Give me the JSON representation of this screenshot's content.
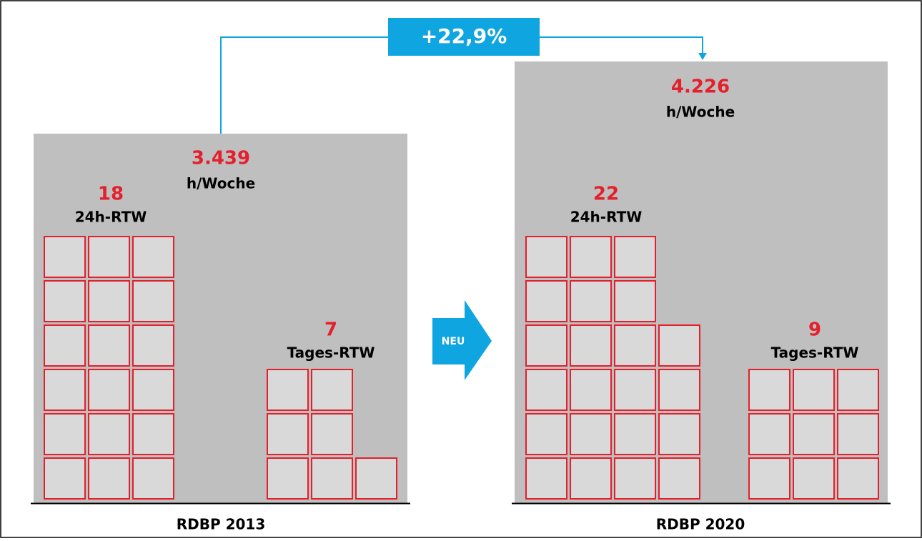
{
  "change": "+22,9%",
  "new_label": "NEU",
  "panels": [
    {
      "label": "RDBP 2013",
      "total": "3.439",
      "total_unit": "h/Woche",
      "groups": [
        {
          "count": 18,
          "label": "24h-RTW"
        },
        {
          "count": 7,
          "label": "Tages-RTW"
        }
      ]
    },
    {
      "label": "RDBP 2020",
      "total": "4.226",
      "total_unit": "h/Woche",
      "groups": [
        {
          "count": 22,
          "label": "24h-RTW"
        },
        {
          "count": 9,
          "label": "Tages-RTW"
        }
      ]
    }
  ]
}
